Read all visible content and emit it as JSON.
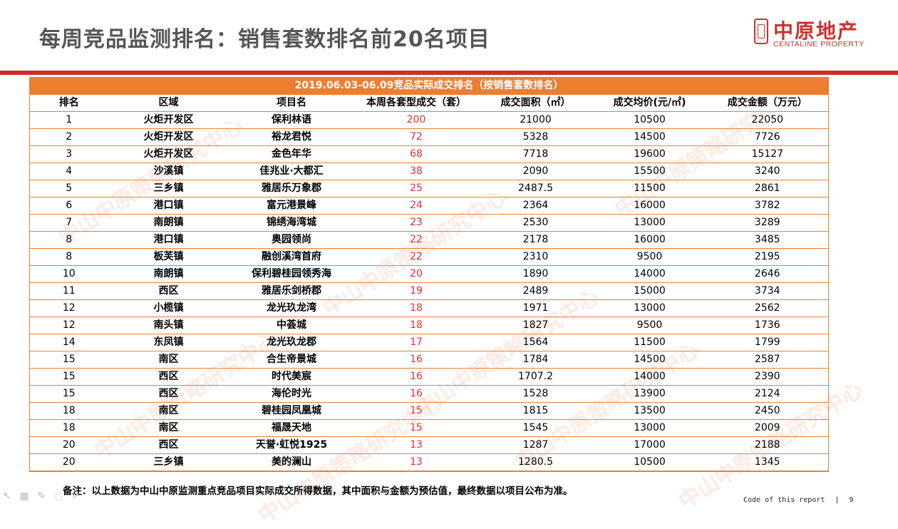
{
  "page": {
    "title": "每周竞品监测排名：销售套数排名前20名项目"
  },
  "logo": {
    "cn": "中原地产",
    "en": "CENTALINE PROPERTY"
  },
  "table": {
    "caption": "2019.06.03-06.09竞品实际成交排名（按销售套数排名）",
    "headers": [
      "排名",
      "区域",
      "项目名",
      "本周各套型成交（套）",
      "成交面积（㎡）",
      "成交均价(元/㎡)",
      "成交金额（万元）"
    ],
    "rows": [
      [
        "1",
        "火炬开发区",
        "保利林语",
        "200",
        "21000",
        "10500",
        "22050"
      ],
      [
        "2",
        "火炬开发区",
        "裕龙君悦",
        "72",
        "5328",
        "14500",
        "7726"
      ],
      [
        "3",
        "火炬开发区",
        "金色年华",
        "68",
        "7718",
        "19600",
        "15127"
      ],
      [
        "4",
        "沙溪镇",
        "佳兆业·大都汇",
        "38",
        "2090",
        "15500",
        "3240"
      ],
      [
        "5",
        "三乡镇",
        "雅居乐万象郡",
        "25",
        "2487.5",
        "11500",
        "2861"
      ],
      [
        "6",
        "港口镇",
        "富元港景峰",
        "24",
        "2364",
        "16000",
        "3782"
      ],
      [
        "7",
        "南朗镇",
        "锦绣海湾城",
        "23",
        "2530",
        "13000",
        "3289"
      ],
      [
        "8",
        "港口镇",
        "奥园领尚",
        "22",
        "2178",
        "16000",
        "3485"
      ],
      [
        "8",
        "板芙镇",
        "融创溪湾首府",
        "22",
        "2310",
        "9500",
        "2195"
      ],
      [
        "10",
        "南朗镇",
        "保利碧桂园领秀海",
        "20",
        "1890",
        "14000",
        "2646"
      ],
      [
        "11",
        "西区",
        "雅居乐剑桥郡",
        "19",
        "2489",
        "15000",
        "3734"
      ],
      [
        "12",
        "小榄镇",
        "龙光玖龙湾",
        "18",
        "1971",
        "13000",
        "2562"
      ],
      [
        "12",
        "南头镇",
        "中荟城",
        "18",
        "1827",
        "9500",
        "1736"
      ],
      [
        "14",
        "东凤镇",
        "龙光玖龙郡",
        "17",
        "1564",
        "11500",
        "1799"
      ],
      [
        "15",
        "南区",
        "合生帝景城",
        "16",
        "1784",
        "14500",
        "2587"
      ],
      [
        "15",
        "西区",
        "时代美宸",
        "16",
        "1707.2",
        "14000",
        "2390"
      ],
      [
        "15",
        "西区",
        "海伦时光",
        "16",
        "1528",
        "13900",
        "2124"
      ],
      [
        "18",
        "南区",
        "碧桂园凤凰城",
        "15",
        "1815",
        "13500",
        "2450"
      ],
      [
        "18",
        "南区",
        "福晟天地",
        "15",
        "1545",
        "13000",
        "2009"
      ],
      [
        "20",
        "西区",
        "天誉·虹悦1925",
        "13",
        "1287",
        "17000",
        "2188"
      ],
      [
        "20",
        "三乡镇",
        "美的澜山",
        "13",
        "1280.5",
        "10500",
        "1345"
      ]
    ]
  },
  "note": "备注：以上数据为中山中原监测重点竞品项目实际成交所得数据，其中面积与金额为预估值，最终数据以项目公布为准。",
  "footer": {
    "code": "Code of this report",
    "separator": "|",
    "page_number": "9"
  },
  "watermark": {
    "text": "中山中原策略研究中心"
  },
  "toolbar": {
    "icons": [
      "pointer-icon",
      "grid-icon",
      "pen-icon",
      "eraser-icon",
      "cursor-icon"
    ]
  },
  "colors": {
    "brand_red": "#c9302c",
    "table_orange": "#ec7e32",
    "highlight_red": "#e03030",
    "title_gray": "#555555"
  }
}
